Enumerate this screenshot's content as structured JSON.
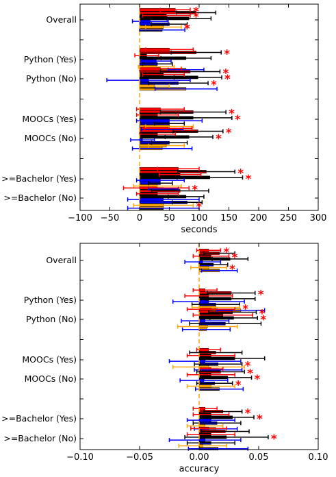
{
  "chart_data": [
    {
      "type": "bar",
      "orientation": "horizontal",
      "xlabel": "seconds",
      "xlim": [
        -100,
        300
      ],
      "xticks": [
        "−100",
        "−50",
        "0",
        "50",
        "100",
        "150",
        "200",
        "250",
        "300"
      ],
      "xtick_values": [
        -100,
        -50,
        0,
        50,
        100,
        150,
        200,
        250,
        300
      ],
      "categories": [
        "Overall",
        "Python (Yes)",
        "Python (No)",
        "MOOCs (Yes)",
        "MOOCs (No)",
        ">=Bachelor (Yes)",
        ">=Bachelor (No)"
      ],
      "series": [
        {
          "color": "#ff0000",
          "err_color": "#ff0000",
          "values": [
            60,
            50,
            35,
            35,
            48,
            65,
            28
          ],
          "err": [
            25,
            40,
            35,
            40,
            40,
            35,
            55
          ]
        },
        {
          "color": "#ff0000",
          "err_color": "#000000",
          "hatch": true,
          "values": [
            95,
            95,
            85,
            90,
            98,
            112,
            68
          ],
          "err": [
            33,
            42,
            50,
            55,
            42,
            48,
            48
          ]
        },
        {
          "color": "#000000",
          "err_color": "#ff0000",
          "values": [
            45,
            12,
            40,
            30,
            30,
            68,
            30
          ],
          "err": [
            40,
            20,
            35,
            35,
            30,
            35,
            35
          ]
        },
        {
          "color": "#000000",
          "err_color": "#000000",
          "hatch": true,
          "values": [
            83,
            78,
            98,
            90,
            83,
            118,
            78
          ],
          "err": [
            37,
            42,
            40,
            65,
            40,
            55,
            30
          ]
        },
        {
          "color": "#0000ff",
          "err_color": "#0000ff",
          "values": [
            18,
            28,
            15,
            50,
            5,
            35,
            40
          ],
          "err": [
            30,
            25,
            70,
            55,
            20,
            40,
            60
          ]
        },
        {
          "color": "#0000ff",
          "err_color": "#000000",
          "hatch": true,
          "values": [
            50,
            30,
            65,
            50,
            50,
            35,
            80
          ],
          "err": [
            30,
            25,
            50,
            25,
            30,
            20,
            25
          ]
        },
        {
          "color": "#ffa500",
          "err_color": "#ffa500",
          "values": [
            40,
            28,
            25,
            50,
            45,
            30,
            40
          ],
          "err": [
            30,
            30,
            25,
            40,
            30,
            40,
            50
          ]
        },
        {
          "color": "#ffa500",
          "err_color": "#0000ff",
          "hatch": true,
          "values": [
            38,
            78,
            78,
            38,
            38,
            40,
            40
          ],
          "err": [
            38,
            30,
            52,
            35,
            50,
            25,
            60
          ]
        }
      ],
      "stars": [
        [
          1,
          1
        ],
        [
          1,
          3
        ],
        [
          1,
          7
        ],
        [
          1,
          7
        ],
        [
          2,
          2
        ],
        [
          3,
          2
        ],
        [
          3,
          4
        ],
        [
          3,
          6
        ],
        [
          4,
          2
        ],
        [
          4,
          4
        ],
        [
          5,
          2
        ],
        [
          5,
          4
        ],
        [
          6,
          2
        ],
        [
          6,
          4
        ],
        [
          7,
          1
        ],
        [
          7,
          7
        ]
      ],
      "grid": false
    },
    {
      "type": "bar",
      "orientation": "horizontal",
      "xlabel": "accuracy",
      "xlim": [
        -0.1,
        0.1
      ],
      "xticks": [
        "−0.10",
        "−0.05",
        "0.00",
        "0.05",
        "0.10"
      ],
      "xtick_values": [
        -0.1,
        -0.05,
        0,
        0.05,
        0.1
      ],
      "categories": [
        "Overall",
        "Python (Yes)",
        "Python (No)",
        "MOOCs (Yes)",
        "MOOCs (No)",
        ">=Bachelor (Yes)",
        ">=Bachelor (No)"
      ],
      "series": [
        {
          "color": "#ff0000",
          "err_color": "#ff0000",
          "values": [
            0.008,
            0.005,
            0.01,
            0.008,
            0.01,
            0.005,
            0.008
          ],
          "err": [
            0.01,
            0.01,
            0.02,
            0.01,
            0.01,
            0.01,
            0.015
          ]
        },
        {
          "color": "#ff0000",
          "err_color": "#000000",
          "hatch": true,
          "values": [
            0.017,
            0.027,
            0.028,
            0.014,
            0.018,
            0.02,
            0.022
          ],
          "err": [
            0.013,
            0.02,
            0.02,
            0.022,
            0.02,
            0.016,
            0.02
          ]
        },
        {
          "color": "#000000",
          "err_color": "#ff0000",
          "values": [
            0.01,
            0.008,
            0.02,
            0.01,
            0.01,
            0.01,
            0.01
          ],
          "err": [
            0.015,
            0.02,
            0.025,
            0.02,
            0.02,
            0.015,
            0.02
          ]
        },
        {
          "color": "#000000",
          "err_color": "#000000",
          "hatch": true,
          "values": [
            0.026,
            0.027,
            0.029,
            0.03,
            0.024,
            0.028,
            0.023
          ],
          "err": [
            0.015,
            0.02,
            0.02,
            0.025,
            0.02,
            0.018,
            0.035
          ]
        },
        {
          "color": "#0000ff",
          "err_color": "#0000ff",
          "values": [
            0.003,
            0.008,
            0.005,
            0.005,
            0.004,
            0.01,
            0.005
          ],
          "err": [
            0.015,
            0.03,
            0.02,
            0.03,
            0.02,
            0.02,
            0.03
          ]
        },
        {
          "color": "#0000ff",
          "err_color": "#000000",
          "hatch": true,
          "values": [
            0.012,
            0.014,
            0.022,
            0.016,
            0.013,
            0.015,
            0.01
          ],
          "err": [
            0.012,
            0.02,
            0.03,
            0.02,
            0.015,
            0.02,
            0.02
          ]
        },
        {
          "color": "#ffa500",
          "err_color": "#ffa500",
          "values": [
            0.008,
            0.014,
            0.007,
            0.008,
            0.01,
            0.005,
            0.003
          ],
          "err": [
            0.015,
            0.02,
            0.025,
            0.03,
            0.02,
            0.015,
            0.02
          ]
        },
        {
          "color": "#ffa500",
          "err_color": "#0000ff",
          "hatch": true,
          "values": [
            0.017,
            0.035,
            0.006,
            0.016,
            0.017,
            0.014,
            0.016
          ],
          "err": [
            0.015,
            0.02,
            0.02,
            0.02,
            0.02,
            0.018,
            0.025
          ]
        }
      ],
      "stars": [
        [
          1,
          1
        ],
        [
          1,
          3
        ],
        [
          1,
          7
        ],
        [
          2,
          2
        ],
        [
          2,
          7
        ],
        [
          3,
          2
        ],
        [
          3,
          4
        ],
        [
          4,
          6
        ],
        [
          5,
          2
        ],
        [
          5,
          4
        ],
        [
          5,
          6
        ],
        [
          6,
          2
        ],
        [
          6,
          4
        ],
        [
          7,
          4
        ]
      ],
      "grid": false
    }
  ]
}
